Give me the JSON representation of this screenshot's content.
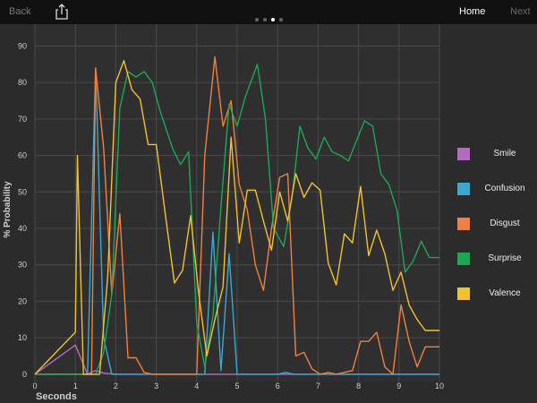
{
  "topbar": {
    "back_label": "Back",
    "home_label": "Home",
    "next_label": "Next",
    "page_count": 4,
    "active_page": 3
  },
  "chart_data": {
    "type": "line",
    "xlabel": "Seconds",
    "ylabel": "% Probability",
    "xlim": [
      0,
      10
    ],
    "ylim": [
      -2,
      96
    ],
    "xticks": [
      0,
      1,
      2,
      3,
      4,
      5,
      6,
      7,
      8,
      9,
      10
    ],
    "yticks": [
      0,
      10,
      20,
      30,
      40,
      50,
      60,
      70,
      80,
      90
    ],
    "grid": true,
    "legend_position": "right",
    "series": [
      {
        "name": "Smile",
        "color": "#b56ac1",
        "x": [
          0,
          1,
          1.3,
          1.5,
          1.7,
          2,
          3,
          4,
          5,
          6,
          7,
          8,
          9,
          10
        ],
        "y": [
          0,
          8,
          0,
          1,
          0.3,
          0,
          0,
          0,
          0,
          0,
          0,
          0,
          0,
          0
        ]
      },
      {
        "name": "Confusion",
        "color": "#3aa8cf",
        "x": [
          0,
          1.3,
          1.5,
          1.7,
          1.9,
          2.1,
          4.2,
          4.4,
          4.6,
          4.8,
          5.0,
          5.1,
          6,
          6.2,
          6.4,
          7,
          8,
          9,
          10
        ],
        "y": [
          0,
          0,
          84,
          10,
          0,
          0,
          0,
          39,
          1,
          33,
          0,
          0,
          0,
          0.5,
          0,
          0,
          0,
          0,
          0
        ]
      },
      {
        "name": "Disgust",
        "color": "#f08040",
        "x": [
          0,
          1.4,
          1.5,
          1.7,
          1.9,
          2.1,
          2.3,
          2.5,
          2.7,
          2.9,
          3.1,
          4.0,
          4.2,
          4.45,
          4.65,
          4.85,
          5.05,
          5.25,
          5.45,
          5.65,
          5.85,
          6.05,
          6.25,
          6.45,
          6.65,
          6.85,
          7.05,
          7.25,
          7.45,
          7.65,
          7.85,
          8.05,
          8.25,
          8.45,
          8.65,
          8.85,
          9.05,
          9.25,
          9.45,
          9.65,
          9.85,
          10
        ],
        "y": [
          0,
          0,
          84,
          62,
          22,
          44,
          4.5,
          4.5,
          0.5,
          0,
          0,
          0,
          60,
          87,
          68,
          75,
          52,
          45,
          30,
          23,
          40,
          54,
          55,
          5,
          6,
          1.5,
          0,
          0.5,
          0,
          0.5,
          1,
          9,
          9,
          11.5,
          2,
          0,
          19,
          9,
          2,
          7.5,
          7.5,
          7.5
        ]
      },
      {
        "name": "Surprise",
        "color": "#1ca853",
        "x": [
          0,
          1.3,
          1.5,
          1.7,
          1.9,
          2.1,
          2.3,
          2.5,
          2.7,
          2.9,
          3.1,
          3.4,
          3.6,
          3.8,
          4.0,
          4.2,
          4.4,
          4.6,
          4.8,
          5.0,
          5.2,
          5.5,
          5.7,
          5.9,
          6.15,
          6.35,
          6.55,
          6.75,
          6.95,
          7.15,
          7.35,
          7.55,
          7.75,
          7.95,
          8.15,
          8.35,
          8.55,
          8.75,
          8.95,
          9.15,
          9.35,
          9.55,
          9.75,
          10
        ],
        "y": [
          0,
          0,
          0,
          6,
          22,
          73,
          83,
          81.5,
          83,
          80,
          72,
          62,
          57.5,
          61,
          14,
          2,
          16,
          46,
          74,
          68,
          76,
          85,
          70,
          40,
          35,
          48,
          68,
          62,
          59,
          65,
          61,
          60,
          58.5,
          64,
          69.5,
          68,
          55,
          52,
          45,
          28,
          31,
          36.5,
          32,
          32
        ]
      },
      {
        "name": "Valence",
        "color": "#f2c12e",
        "x": [
          0,
          1,
          1.05,
          1.2,
          1.4,
          1.6,
          1.8,
          2.0,
          2.2,
          2.4,
          2.6,
          2.8,
          3.0,
          3.2,
          3.45,
          3.65,
          3.85,
          4.05,
          4.25,
          4.45,
          4.65,
          4.85,
          5.05,
          5.25,
          5.45,
          5.65,
          5.85,
          6.05,
          6.25,
          6.45,
          6.65,
          6.85,
          7.05,
          7.25,
          7.45,
          7.65,
          7.85,
          8.05,
          8.25,
          8.45,
          8.65,
          8.85,
          9.05,
          9.25,
          9.45,
          9.65,
          9.85,
          10
        ],
        "y": [
          0,
          11.5,
          60,
          0,
          0,
          0,
          27,
          80,
          86,
          78,
          75.5,
          63,
          63,
          46,
          25,
          28.5,
          43.5,
          22,
          5,
          15,
          24,
          65,
          36,
          50.5,
          50.5,
          42,
          34,
          50,
          42,
          55,
          48.5,
          52.5,
          50.5,
          30.5,
          24.5,
          38.5,
          36,
          51.5,
          32.5,
          39.5,
          33,
          23,
          28,
          19,
          15,
          12,
          12,
          12
        ]
      }
    ]
  }
}
